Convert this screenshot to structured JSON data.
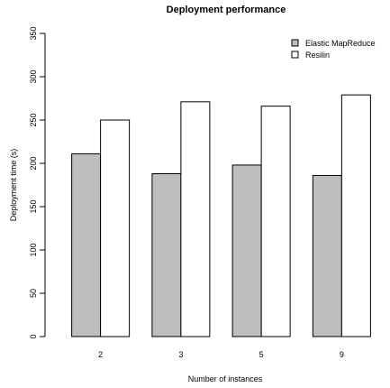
{
  "chart_data": {
    "type": "bar",
    "title": "Deployment performance",
    "xlabel": "Number of instances",
    "ylabel": "Deployment time (s)",
    "categories": [
      "2",
      "3",
      "5",
      "9"
    ],
    "ylim": [
      0,
      350
    ],
    "yticks": [
      0,
      50,
      100,
      150,
      200,
      250,
      300,
      350
    ],
    "grid": false,
    "legend_position": "top-right",
    "series": [
      {
        "name": "Elastic MapReduce",
        "color": "#bebebe",
        "values": [
          211,
          188,
          198,
          186
        ]
      },
      {
        "name": "Resilin",
        "color": "#ffffff",
        "values": [
          250,
          271,
          266,
          279
        ]
      }
    ]
  }
}
